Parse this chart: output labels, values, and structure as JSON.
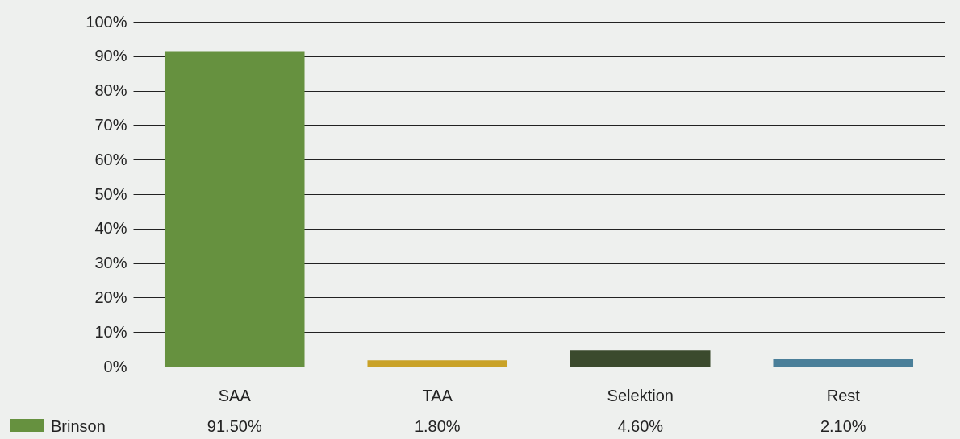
{
  "chart_data": {
    "type": "bar",
    "categories": [
      "SAA",
      "TAA",
      "Selektion",
      "Rest"
    ],
    "series": [
      {
        "name": "Brinson",
        "colors": [
          "#66913f",
          "#c9a227",
          "#3b4a2d",
          "#4a7f99"
        ],
        "values": [
          91.5,
          1.8,
          4.6,
          2.1
        ],
        "value_labels": [
          "91.50%",
          "1.80%",
          "4.60%",
          "2.10%"
        ]
      }
    ],
    "ylim": [
      0,
      100
    ],
    "yticks": [
      {
        "value": 0,
        "label": "0%"
      },
      {
        "value": 10,
        "label": "10%"
      },
      {
        "value": 20,
        "label": "20%"
      },
      {
        "value": 30,
        "label": "30%"
      },
      {
        "value": 40,
        "label": "40%"
      },
      {
        "value": 50,
        "label": "50%"
      },
      {
        "value": 60,
        "label": "60%"
      },
      {
        "value": 70,
        "label": "70%"
      },
      {
        "value": 80,
        "label": "80%"
      },
      {
        "value": 90,
        "label": "90%"
      },
      {
        "value": 100,
        "label": "100%"
      }
    ],
    "grid": "y",
    "legend": "bottom left"
  }
}
